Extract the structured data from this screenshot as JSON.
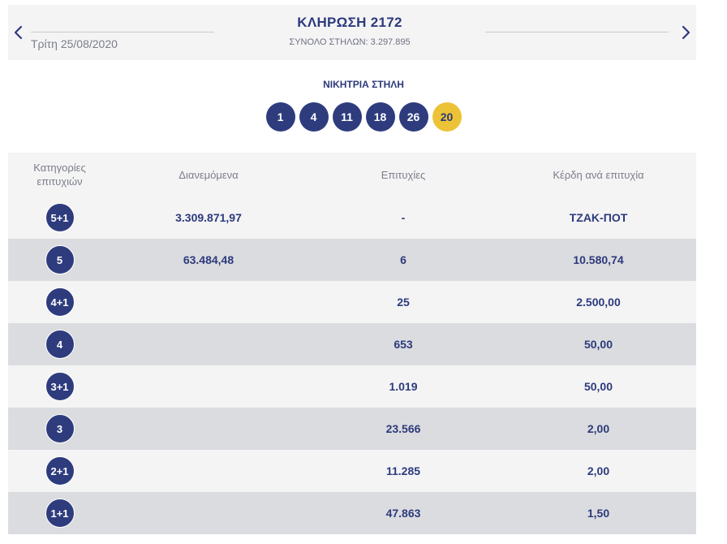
{
  "header": {
    "prev_label": "",
    "next_label": "",
    "draw_date": "Τρίτη 25/08/2020",
    "draw_title": "ΚΛΗΡΩΣΗ 2172",
    "total_columns": "ΣΥΝΟΛΟ ΣΤΗΛΩΝ: 3.297.895"
  },
  "winning": {
    "title": "ΝΙΚΗΤΡΙΑ ΣΤΗΛΗ",
    "numbers": [
      "1",
      "4",
      "11",
      "18",
      "26"
    ],
    "joker": "20"
  },
  "table": {
    "headers": {
      "category_line1": "Κατηγορίες",
      "category_line2": "επιτυχιών",
      "distributed": "Διανεμόμενα",
      "winners": "Επιτυχίες",
      "prize": "Κέρδη ανά επιτυχία"
    },
    "rows": [
      {
        "category": "5+1",
        "distributed": "3.309.871,97",
        "winners": "-",
        "prize": "ΤΖΑΚ-ΠΟΤ"
      },
      {
        "category": "5",
        "distributed": "63.484,48",
        "winners": "6",
        "prize": "10.580,74"
      },
      {
        "category": "4+1",
        "distributed": "",
        "winners": "25",
        "prize": "2.500,00"
      },
      {
        "category": "4",
        "distributed": "",
        "winners": "653",
        "prize": "50,00"
      },
      {
        "category": "3+1",
        "distributed": "",
        "winners": "1.019",
        "prize": "50,00"
      },
      {
        "category": "3",
        "distributed": "",
        "winners": "23.566",
        "prize": "2,00"
      },
      {
        "category": "2+1",
        "distributed": "",
        "winners": "11.285",
        "prize": "2,00"
      },
      {
        "category": "1+1",
        "distributed": "",
        "winners": "47.863",
        "prize": "1,50"
      }
    ]
  },
  "colors": {
    "accent": "#2e3c7e",
    "joker": "#ecc237",
    "row_light": "#f4f4f5",
    "row_dark": "#dbdcdf"
  }
}
